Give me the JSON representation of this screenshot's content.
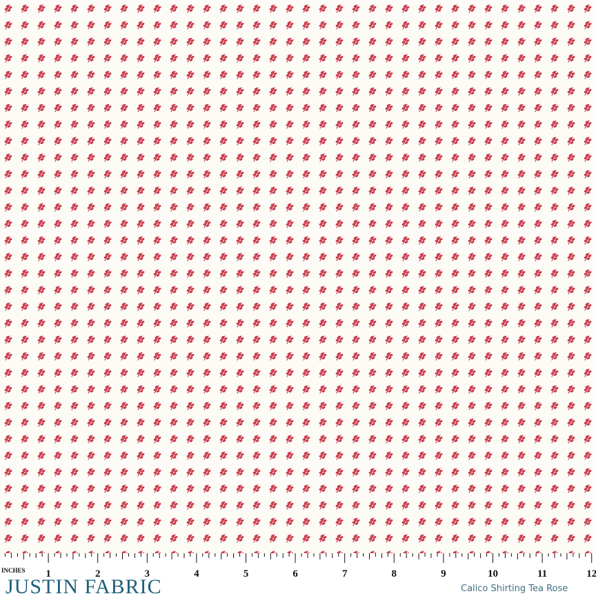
{
  "ruler": {
    "unit": "INCHES",
    "labels": [
      "1",
      "2",
      "3",
      "4",
      "5",
      "6",
      "7",
      "8",
      "9",
      "10",
      "11",
      "12"
    ]
  },
  "brand": "JUSTIN FABRIC",
  "caption": "Calico Shirting Tea Rose"
}
